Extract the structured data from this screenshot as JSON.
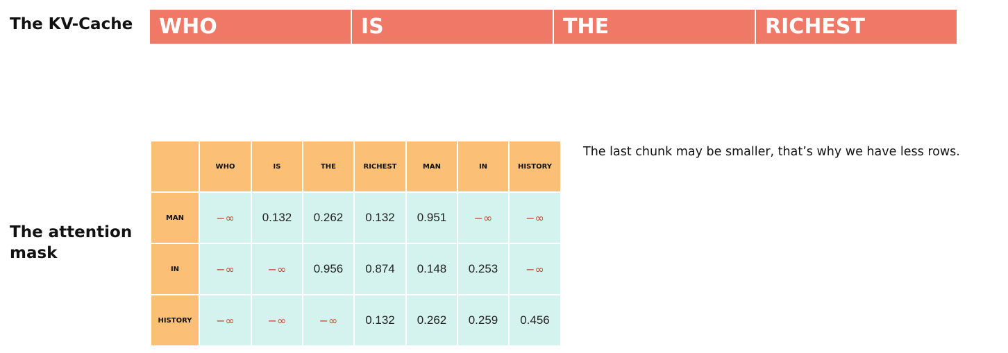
{
  "kv_cache": {
    "title": "The KV-Cache",
    "tokens": [
      "WHO",
      "IS",
      "THE",
      "RICHEST"
    ],
    "color": "#ef7866"
  },
  "attention_mask": {
    "title": "The attention mask",
    "columns": [
      "WHO",
      "IS",
      "THE",
      "RICHEST",
      "MAN",
      "IN",
      "HISTORY"
    ],
    "rows": [
      {
        "label": "MAN",
        "values": [
          "−∞",
          "0.132",
          "0.262",
          "0.132",
          "0.951",
          "−∞",
          "−∞"
        ]
      },
      {
        "label": "IN",
        "values": [
          "−∞",
          "−∞",
          "0.956",
          "0.874",
          "0.148",
          "0.253",
          "−∞"
        ]
      },
      {
        "label": "HISTORY",
        "values": [
          "−∞",
          "−∞",
          "−∞",
          "0.132",
          "0.262",
          "0.259",
          "0.456"
        ]
      }
    ],
    "colors": {
      "header": "#fbbf76",
      "cell": "#d4f3ee",
      "neg_inf": "#c9452f"
    }
  },
  "note": "The last chunk may be smaller, that’s why we have less rows."
}
